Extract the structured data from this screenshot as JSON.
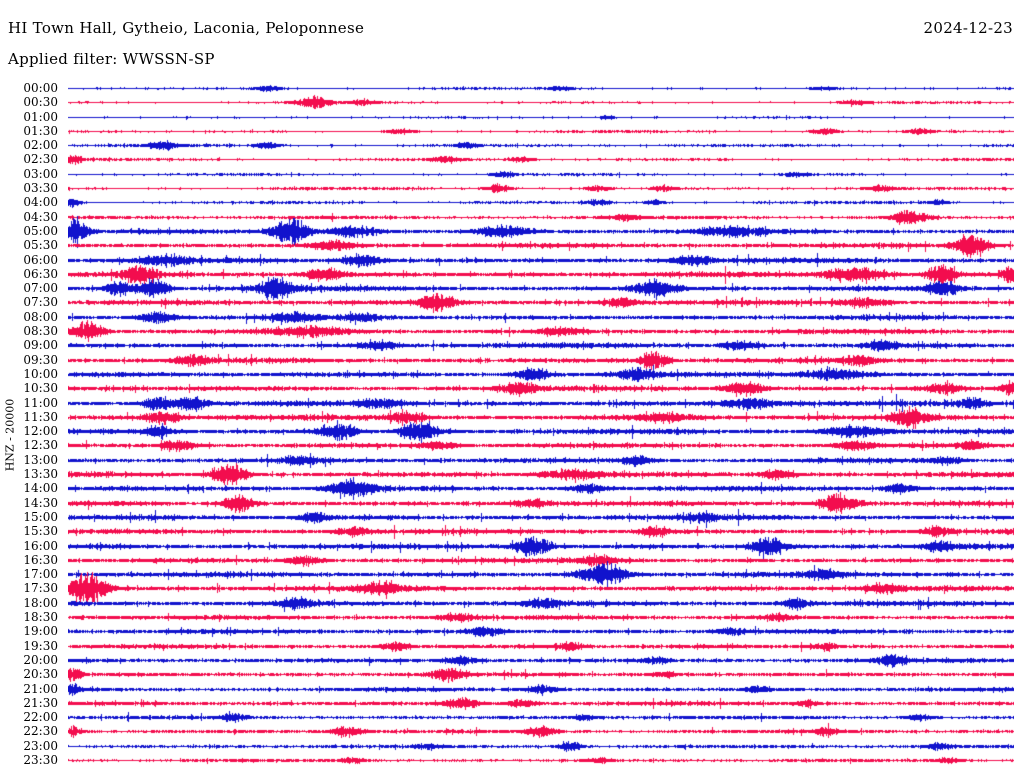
{
  "header": {
    "station_title": "HI Town Hall, Gytheio, Laconia, Peloponnese",
    "date": "2024-12-23",
    "filter_label": "Applied filter: WWSSN-SP"
  },
  "y_axis_label": "HNZ - 20000",
  "colors": {
    "background": "#ffffff",
    "text": "#000000",
    "trace_blue": "#1113cd",
    "trace_red": "#f30d4e"
  },
  "chart_data": {
    "type": "line",
    "subtype": "helicorder_seismogram",
    "title": "HI Town Hall, Gytheio, Laconia, Peloponnese",
    "date": "2024-12-23",
    "applied_filter": "WWSSN-SP",
    "channel_scale_label": "HNZ - 20000",
    "minutes_per_row": 30,
    "num_rows": 48,
    "row_color_cycle": [
      "blue",
      "red"
    ],
    "note": "48 half-hour trace rows 00:00-23:30; events = [x_fraction_along_row, peak_half_amplitude_px, gaussian_width_px]",
    "rows": [
      {
        "label": "00:00",
        "color": "blue",
        "base_amp": 0.8,
        "events": [
          [
            0.21,
            2.5,
            10
          ],
          [
            0.52,
            2,
            8
          ],
          [
            0.8,
            1.5,
            8
          ]
        ]
      },
      {
        "label": "00:30",
        "color": "red",
        "base_amp": 0.9,
        "events": [
          [
            0.26,
            5,
            12
          ],
          [
            0.31,
            2.5,
            8
          ],
          [
            0.83,
            2,
            8
          ]
        ]
      },
      {
        "label": "01:00",
        "color": "blue",
        "base_amp": 0.7,
        "events": [
          [
            0.57,
            2,
            6
          ]
        ]
      },
      {
        "label": "01:30",
        "color": "red",
        "base_amp": 0.9,
        "events": [
          [
            0.35,
            2,
            10
          ],
          [
            0.8,
            3,
            8
          ],
          [
            0.9,
            2.5,
            8
          ]
        ]
      },
      {
        "label": "02:00",
        "color": "blue",
        "base_amp": 1.0,
        "events": [
          [
            0.1,
            4,
            10
          ],
          [
            0.21,
            3,
            8
          ],
          [
            0.42,
            2.5,
            8
          ]
        ]
      },
      {
        "label": "02:30",
        "color": "red",
        "base_amp": 1.0,
        "events": [
          [
            0.005,
            4,
            6
          ],
          [
            0.4,
            3,
            10
          ],
          [
            0.48,
            2.5,
            8
          ]
        ]
      },
      {
        "label": "03:00",
        "color": "blue",
        "base_amp": 0.9,
        "events": [
          [
            0.46,
            2,
            8
          ],
          [
            0.77,
            2,
            8
          ]
        ]
      },
      {
        "label": "03:30",
        "color": "red",
        "base_amp": 1.0,
        "events": [
          [
            0.455,
            3.5,
            8
          ],
          [
            0.56,
            2.5,
            8
          ],
          [
            0.63,
            3,
            8
          ],
          [
            0.86,
            3,
            8
          ]
        ]
      },
      {
        "label": "04:00",
        "color": "blue",
        "base_amp": 1.0,
        "events": [
          [
            0.005,
            4,
            5
          ],
          [
            0.56,
            2.5,
            8
          ],
          [
            0.62,
            2.5,
            6
          ],
          [
            0.92,
            2.5,
            6
          ]
        ]
      },
      {
        "label": "04:30",
        "color": "red",
        "base_amp": 1.4,
        "events": [
          [
            0.59,
            3,
            10
          ],
          [
            0.89,
            7,
            12
          ]
        ]
      },
      {
        "label": "05:00",
        "color": "blue",
        "base_amp": 2.2,
        "events": [
          [
            0.008,
            12,
            8
          ],
          [
            0.235,
            13,
            12
          ],
          [
            0.3,
            5,
            16
          ],
          [
            0.46,
            5,
            18
          ],
          [
            0.7,
            4,
            24
          ]
        ]
      },
      {
        "label": "05:30",
        "color": "red",
        "base_amp": 2.4,
        "events": [
          [
            0.28,
            4,
            16
          ],
          [
            0.955,
            10,
            12
          ]
        ]
      },
      {
        "label": "06:00",
        "color": "blue",
        "base_amp": 2.6,
        "events": [
          [
            0.1,
            4,
            18
          ],
          [
            0.31,
            5,
            12
          ],
          [
            0.66,
            4,
            14
          ]
        ]
      },
      {
        "label": "06:30",
        "color": "red",
        "base_amp": 2.8,
        "events": [
          [
            0.075,
            8,
            10
          ],
          [
            0.27,
            5,
            14
          ],
          [
            0.83,
            6,
            22
          ],
          [
            0.925,
            10,
            10
          ],
          [
            0.998,
            7,
            8
          ]
        ]
      },
      {
        "label": "07:00",
        "color": "blue",
        "base_amp": 2.6,
        "events": [
          [
            0.055,
            7,
            9
          ],
          [
            0.09,
            8,
            10
          ],
          [
            0.22,
            9,
            12
          ],
          [
            0.62,
            8,
            13
          ],
          [
            0.925,
            7,
            11
          ]
        ]
      },
      {
        "label": "07:30",
        "color": "red",
        "base_amp": 2.6,
        "events": [
          [
            0.39,
            9,
            12
          ],
          [
            0.585,
            5,
            10
          ],
          [
            0.84,
            4,
            16
          ]
        ]
      },
      {
        "label": "08:00",
        "color": "blue",
        "base_amp": 2.4,
        "events": [
          [
            0.095,
            5,
            13
          ],
          [
            0.24,
            4,
            16
          ],
          [
            0.31,
            4,
            10
          ]
        ]
      },
      {
        "label": "08:30",
        "color": "red",
        "base_amp": 2.4,
        "events": [
          [
            0.02,
            9,
            11
          ],
          [
            0.26,
            4,
            26
          ],
          [
            0.52,
            3.5,
            16
          ]
        ]
      },
      {
        "label": "09:00",
        "color": "blue",
        "base_amp": 2.6,
        "events": [
          [
            0.33,
            4,
            14
          ],
          [
            0.71,
            4,
            12
          ],
          [
            0.86,
            4,
            10
          ]
        ]
      },
      {
        "label": "09:30",
        "color": "red",
        "base_amp": 2.6,
        "events": [
          [
            0.13,
            4,
            12
          ],
          [
            0.62,
            7,
            10
          ],
          [
            0.835,
            4,
            12
          ]
        ]
      },
      {
        "label": "10:00",
        "color": "blue",
        "base_amp": 2.6,
        "events": [
          [
            0.49,
            6,
            11
          ],
          [
            0.6,
            5,
            12
          ],
          [
            0.81,
            5,
            22
          ]
        ]
      },
      {
        "label": "10:30",
        "color": "red",
        "base_amp": 2.6,
        "events": [
          [
            0.475,
            6,
            12
          ],
          [
            0.715,
            6,
            13
          ],
          [
            0.925,
            5,
            12
          ],
          [
            0.998,
            6,
            8
          ]
        ]
      },
      {
        "label": "11:00",
        "color": "blue",
        "base_amp": 2.8,
        "events": [
          [
            0.095,
            6,
            9
          ],
          [
            0.13,
            7,
            11
          ],
          [
            0.33,
            4,
            14
          ],
          [
            0.72,
            5,
            18
          ],
          [
            0.955,
            5,
            10
          ]
        ]
      },
      {
        "label": "11:30",
        "color": "red",
        "base_amp": 2.8,
        "events": [
          [
            0.1,
            5,
            13
          ],
          [
            0.36,
            4,
            13
          ],
          [
            0.63,
            4,
            16
          ],
          [
            0.89,
            8,
            12
          ]
        ]
      },
      {
        "label": "12:00",
        "color": "blue",
        "base_amp": 2.6,
        "events": [
          [
            0.095,
            5,
            10
          ],
          [
            0.285,
            8,
            13
          ],
          [
            0.37,
            9,
            13
          ],
          [
            0.83,
            5,
            22
          ]
        ]
      },
      {
        "label": "12:30",
        "color": "red",
        "base_amp": 2.4,
        "events": [
          [
            0.115,
            5,
            12
          ],
          [
            0.39,
            3.5,
            14
          ],
          [
            0.83,
            4,
            13
          ],
          [
            0.955,
            4,
            8
          ]
        ]
      },
      {
        "label": "13:00",
        "color": "blue",
        "base_amp": 2.4,
        "events": [
          [
            0.245,
            4,
            12
          ],
          [
            0.6,
            5,
            11
          ],
          [
            0.93,
            3.5,
            10
          ]
        ]
      },
      {
        "label": "13:30",
        "color": "red",
        "base_amp": 2.6,
        "events": [
          [
            0.17,
            10,
            12
          ],
          [
            0.53,
            4,
            22
          ],
          [
            0.75,
            4,
            12
          ]
        ]
      },
      {
        "label": "14:00",
        "color": "blue",
        "base_amp": 2.6,
        "events": [
          [
            0.3,
            8,
            15
          ],
          [
            0.55,
            4,
            12
          ],
          [
            0.88,
            4,
            10
          ]
        ]
      },
      {
        "label": "14:30",
        "color": "red",
        "base_amp": 2.6,
        "events": [
          [
            0.18,
            8,
            10
          ],
          [
            0.49,
            4,
            12
          ],
          [
            0.815,
            9,
            13
          ]
        ]
      },
      {
        "label": "15:00",
        "color": "blue",
        "base_amp": 2.6,
        "events": [
          [
            0.26,
            4,
            12
          ],
          [
            0.67,
            4,
            12
          ]
        ]
      },
      {
        "label": "15:30",
        "color": "red",
        "base_amp": 2.6,
        "events": [
          [
            0.3,
            4,
            12
          ],
          [
            0.62,
            4,
            10
          ],
          [
            0.92,
            4,
            10
          ]
        ]
      },
      {
        "label": "16:00",
        "color": "blue",
        "base_amp": 2.6,
        "events": [
          [
            0.49,
            9,
            12
          ],
          [
            0.74,
            9,
            12
          ],
          [
            0.92,
            4,
            10
          ]
        ]
      },
      {
        "label": "16:30",
        "color": "red",
        "base_amp": 2.4,
        "events": [
          [
            0.25,
            4,
            12
          ],
          [
            0.56,
            4,
            14
          ]
        ]
      },
      {
        "label": "17:00",
        "color": "blue",
        "base_amp": 2.6,
        "events": [
          [
            0.565,
            11,
            15
          ],
          [
            0.8,
            4,
            12
          ]
        ]
      },
      {
        "label": "17:30",
        "color": "red",
        "base_amp": 2.8,
        "events": [
          [
            0.022,
            14,
            13
          ],
          [
            0.33,
            4,
            16
          ],
          [
            0.86,
            4,
            12
          ]
        ]
      },
      {
        "label": "18:00",
        "color": "blue",
        "base_amp": 2.6,
        "events": [
          [
            0.24,
            5,
            13
          ],
          [
            0.5,
            4,
            12
          ],
          [
            0.77,
            4,
            10
          ]
        ]
      },
      {
        "label": "18:30",
        "color": "red",
        "base_amp": 2.2,
        "events": [
          [
            0.41,
            3.5,
            12
          ],
          [
            0.75,
            3,
            10
          ]
        ]
      },
      {
        "label": "19:00",
        "color": "blue",
        "base_amp": 2.2,
        "events": [
          [
            0.44,
            4,
            12
          ],
          [
            0.7,
            3,
            10
          ]
        ]
      },
      {
        "label": "19:30",
        "color": "red",
        "base_amp": 2.0,
        "events": [
          [
            0.345,
            4,
            10
          ],
          [
            0.53,
            3,
            10
          ],
          [
            0.8,
            3,
            8
          ]
        ]
      },
      {
        "label": "20:00",
        "color": "blue",
        "base_amp": 2.0,
        "events": [
          [
            0.415,
            4,
            10
          ],
          [
            0.62,
            3,
            10
          ],
          [
            0.87,
            5,
            10
          ]
        ]
      },
      {
        "label": "20:30",
        "color": "red",
        "base_amp": 1.9,
        "events": [
          [
            0.005,
            5,
            7
          ],
          [
            0.4,
            5,
            11
          ],
          [
            0.63,
            3,
            8
          ]
        ]
      },
      {
        "label": "21:00",
        "color": "blue",
        "base_amp": 1.8,
        "events": [
          [
            0.005,
            5,
            6
          ],
          [
            0.5,
            4,
            10
          ],
          [
            0.73,
            3,
            8
          ]
        ]
      },
      {
        "label": "21:30",
        "color": "red",
        "base_amp": 1.9,
        "events": [
          [
            0.415,
            6,
            12
          ],
          [
            0.48,
            4,
            9
          ],
          [
            0.78,
            3,
            8
          ]
        ]
      },
      {
        "label": "22:00",
        "color": "blue",
        "base_amp": 1.5,
        "events": [
          [
            0.175,
            4,
            9
          ],
          [
            0.545,
            3,
            8
          ],
          [
            0.9,
            3,
            8
          ]
        ]
      },
      {
        "label": "22:30",
        "color": "red",
        "base_amp": 1.7,
        "events": [
          [
            0.005,
            4,
            6
          ],
          [
            0.295,
            5,
            11
          ],
          [
            0.5,
            5,
            9
          ],
          [
            0.8,
            3,
            8
          ]
        ]
      },
      {
        "label": "23:00",
        "color": "blue",
        "base_amp": 1.4,
        "events": [
          [
            0.38,
            2.5,
            8
          ],
          [
            0.53,
            5,
            8
          ],
          [
            0.92,
            3,
            8
          ]
        ]
      },
      {
        "label": "23:30",
        "color": "red",
        "base_amp": 1.3,
        "events": [
          [
            0.3,
            2.5,
            8
          ],
          [
            0.56,
            3,
            8
          ],
          [
            0.93,
            2.5,
            8
          ]
        ]
      }
    ]
  }
}
